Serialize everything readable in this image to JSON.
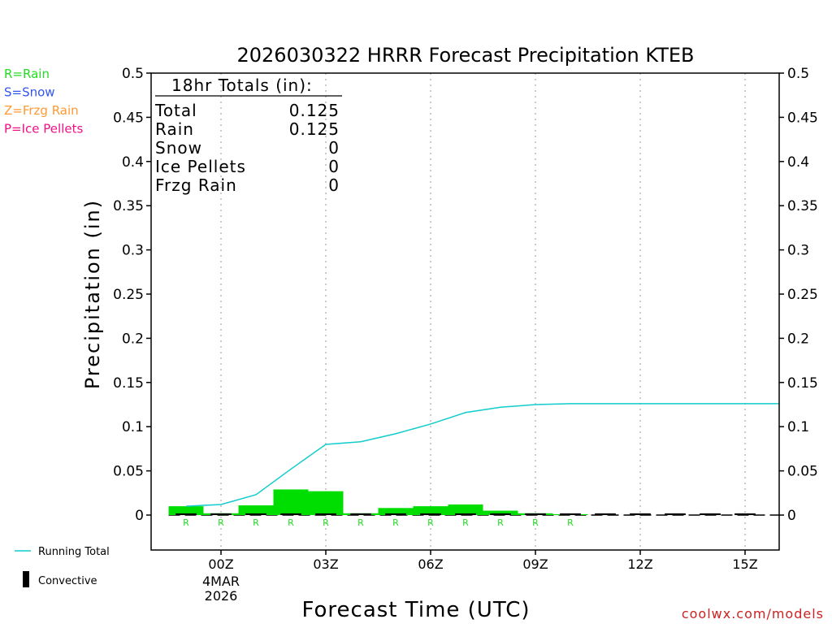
{
  "chart_data": {
    "type": "bar",
    "title": "2026030322 HRRR Forecast Precipitation KTEB",
    "xlabel": "Forecast Time (UTC)",
    "ylabel": "Precipitation (in)",
    "ylim": [
      -0.04,
      0.5
    ],
    "xlim": [
      -2,
      16
    ],
    "y_ticks": [
      0,
      0.05,
      0.1,
      0.15,
      0.2,
      0.25,
      0.3,
      0.35,
      0.4,
      0.45,
      0.5
    ],
    "y_tick_labels": [
      "0",
      "0.05",
      "0.1",
      "0.15",
      "0.2",
      "0.25",
      "0.3",
      "0.35",
      "0.4",
      "0.45",
      "0.5"
    ],
    "x_ticks": [
      0,
      3,
      6,
      9,
      12,
      15
    ],
    "x_tick_labels": [
      "00Z",
      "03Z",
      "06Z",
      "09Z",
      "12Z",
      "15Z"
    ],
    "date_label_line1": "4MAR",
    "date_label_line2": "2026",
    "hours": [
      -1,
      0,
      1,
      2,
      3,
      4,
      5,
      6,
      7,
      8,
      9,
      10,
      11,
      12,
      13,
      14,
      15
    ],
    "hourly_precip": [
      0.01,
      0.002,
      0.011,
      0.029,
      0.027,
      0.002,
      0.008,
      0.01,
      0.012,
      0.005,
      0.002,
      0.001,
      0,
      0,
      0,
      0,
      0
    ],
    "convective": [
      0.001,
      0.001,
      0.001,
      0.001,
      0.001,
      0.001,
      0.001,
      0.001,
      0.001,
      0.001,
      0.001,
      0.001,
      0.001,
      0.001,
      0.001,
      0.001,
      0.001
    ],
    "running_total_hours": [
      -1,
      0,
      1,
      2,
      3,
      4,
      5,
      6,
      7,
      8,
      9,
      10,
      11,
      12,
      13,
      14,
      15,
      16
    ],
    "running_total": [
      0.01,
      0.012,
      0.023,
      0.052,
      0.08,
      0.083,
      0.092,
      0.103,
      0.116,
      0.122,
      0.125,
      0.126,
      0.126,
      0.126,
      0.126,
      0.126,
      0.126,
      0.126
    ],
    "ptype_hours": [
      -1,
      0,
      1,
      2,
      3,
      4,
      5,
      6,
      7,
      8,
      9,
      10
    ],
    "ptype_markers": [
      "R",
      "R",
      "R",
      "R",
      "R",
      "R",
      "R",
      "R",
      "R",
      "R",
      "R",
      "R"
    ],
    "totals_box": {
      "heading": "18hr Totals (in):",
      "rows": [
        {
          "label": "Total",
          "value": "0.125"
        },
        {
          "label": "Rain",
          "value": "0.125"
        },
        {
          "label": "Snow",
          "value": "0"
        },
        {
          "label": "Ice Pellets",
          "value": "0"
        },
        {
          "label": "Frzg Rain",
          "value": "0"
        }
      ]
    },
    "ptype_legend": [
      {
        "text": "R=Rain",
        "color": "#22dd22"
      },
      {
        "text": "S=Snow",
        "color": "#3355ee"
      },
      {
        "text": "Z=Frzg Rain",
        "color": "#ff9933"
      },
      {
        "text": "P=Ice Pellets",
        "color": "#ee1188"
      }
    ],
    "series_legend": [
      {
        "name": "Running Total",
        "color": "#11cccc"
      },
      {
        "name": "Convective",
        "color": "#000000"
      }
    ],
    "credit": "coolwx.com/models"
  },
  "colors": {
    "bar": "#00dd00",
    "running_total": "#11cccc",
    "convective": "#000000",
    "credit": "#cc2222",
    "grid": "#aaaaaa",
    "axis": "#000000"
  }
}
